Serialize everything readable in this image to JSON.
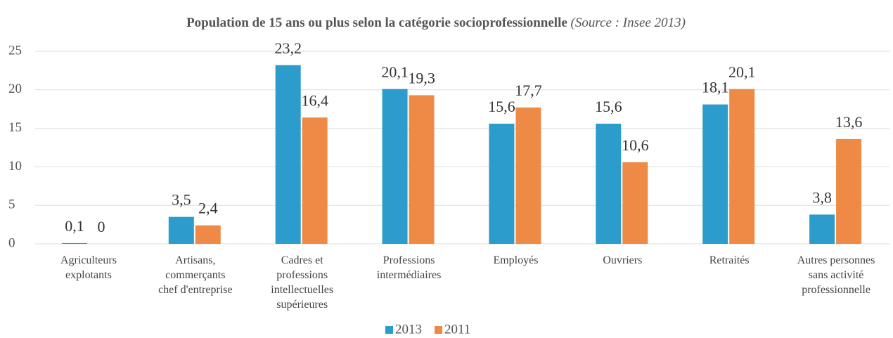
{
  "chart_data": {
    "type": "bar",
    "title": "Population de 15 ans ou plus selon la catégorie socioprofessionnelle",
    "source": "(Source : Insee 2013)",
    "categories": [
      "Agriculteurs\nexplotants",
      "Artisans,\ncommerçants\nchef d'entreprise",
      "Cadres et\nprofessions\nintellectuelles\nsupérieures",
      "Professions\nintermédiaires",
      "Employés",
      "Ouvriers",
      "Retraités",
      "Autres personnes\nsans activité\nprofessionnelle"
    ],
    "series": [
      {
        "name": "2013",
        "color": "#2b9ccb",
        "values": [
          0.1,
          3.5,
          23.2,
          20.1,
          15.6,
          15.6,
          18.1,
          3.8
        ],
        "value_labels": [
          "0,1",
          "3,5",
          "23,2",
          "20,1",
          "15,6",
          "15,6",
          "18,1",
          "3,8"
        ]
      },
      {
        "name": "2011",
        "color": "#ee8a46",
        "values": [
          0,
          2.4,
          16.4,
          19.3,
          17.7,
          10.6,
          20.1,
          13.6
        ],
        "value_labels": [
          "0",
          "2,4",
          "16,4",
          "19,3",
          "17,7",
          "10,6",
          "20,1",
          "13,6"
        ]
      }
    ],
    "ylim": [
      0,
      25
    ],
    "yticks": [
      0,
      5,
      10,
      15,
      20,
      25
    ],
    "grid": true,
    "legend": "bottom"
  }
}
